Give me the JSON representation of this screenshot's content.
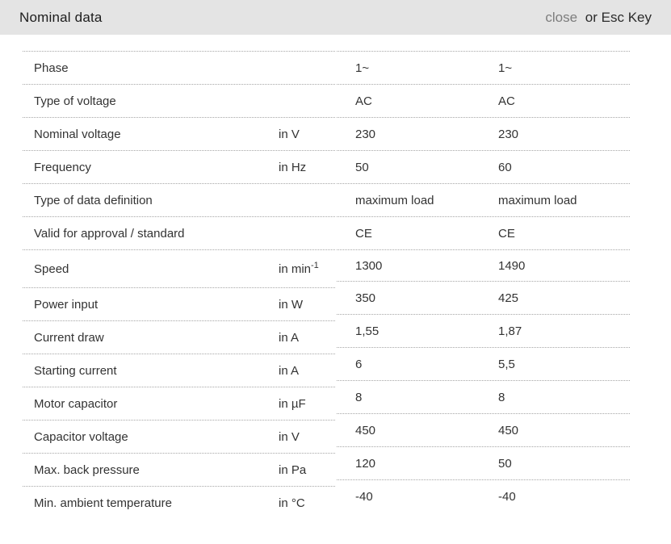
{
  "header": {
    "title": "Nominal data",
    "close_label": "close",
    "esc_hint": "or Esc Key"
  },
  "colors": {
    "header_bg": "#e4e4e4",
    "close_link": "#7d7d7d",
    "text": "#333333",
    "separator": "#a6a6a6"
  },
  "table": {
    "rows": [
      {
        "label": "Phase",
        "unit": "",
        "values": [
          "1~",
          "1~"
        ]
      },
      {
        "label": "Type of voltage",
        "unit": "",
        "values": [
          "AC",
          "AC"
        ]
      },
      {
        "label": "Nominal voltage",
        "unit": "in V",
        "values": [
          "230",
          "230"
        ]
      },
      {
        "label": "Frequency",
        "unit": "in Hz",
        "values": [
          "50",
          "60"
        ]
      },
      {
        "label": "Type of data definition",
        "unit": "",
        "values": [
          "maximum load",
          "maximum load"
        ]
      },
      {
        "label": "Valid for approval / standard",
        "unit": "",
        "values": [
          "CE",
          "CE"
        ]
      },
      {
        "label": "Speed",
        "unit": "in min",
        "unit_sup": "-1",
        "values": [
          "1300",
          "1490"
        ]
      },
      {
        "label": "Power input",
        "unit": "in W",
        "values": [
          "350",
          "425"
        ]
      },
      {
        "label": "Current draw",
        "unit": "in A",
        "values": [
          "1,55",
          "1,87"
        ]
      },
      {
        "label": "Starting current",
        "unit": "in A",
        "values": [
          "6",
          "5,5"
        ]
      },
      {
        "label": "Motor capacitor",
        "unit": "in µF",
        "values": [
          "8",
          "8"
        ]
      },
      {
        "label": "Capacitor voltage",
        "unit": "in V",
        "values": [
          "450",
          "450"
        ]
      },
      {
        "label": "Max. back pressure",
        "unit": "in Pa",
        "values": [
          "120",
          "50"
        ]
      },
      {
        "label": "Min. ambient temperature",
        "unit": "in °C",
        "values": [
          "-40",
          "-40"
        ]
      }
    ]
  }
}
